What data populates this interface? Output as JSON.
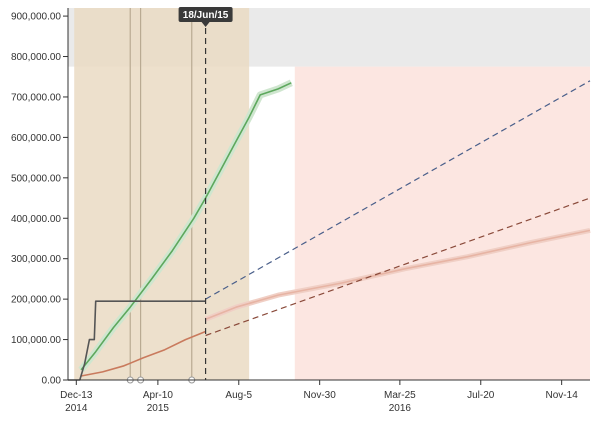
{
  "chart_data": {
    "type": "line",
    "y_ticks": [
      "0.00",
      "100,000.00",
      "200,000.00",
      "300,000.00",
      "400,000.00",
      "500,000.00",
      "600,000.00",
      "700,000.00",
      "800,000.00",
      "900,000.00"
    ],
    "y_tick_values": [
      0,
      100000,
      200000,
      300000,
      400000,
      500000,
      600000,
      700000,
      800000,
      900000
    ],
    "ylim": [
      0,
      920000
    ],
    "x_domain": [
      "2014-12-01",
      "2016-12-25"
    ],
    "x_ticks": [
      {
        "date": "2014-12-13",
        "label": "Dec-13",
        "year": "2014"
      },
      {
        "date": "2015-04-10",
        "label": "Apr-10",
        "year": "2015"
      },
      {
        "date": "2015-08-05",
        "label": "Aug-5",
        "year": ""
      },
      {
        "date": "2015-11-30",
        "label": "Nov-30",
        "year": ""
      },
      {
        "date": "2016-03-25",
        "label": "Mar-25",
        "year": "2016"
      },
      {
        "date": "2016-07-20",
        "label": "Jul-20",
        "year": ""
      },
      {
        "date": "2016-11-14",
        "label": "Nov-14",
        "year": ""
      }
    ],
    "grid": "off",
    "today_marker": {
      "date": "2015-06-18",
      "label": "18/Jun/15"
    },
    "event_lines": [
      "2015-03-01",
      "2015-03-16",
      "2015-05-29"
    ],
    "bands": [
      {
        "start": "2014-12-01",
        "end": "2016-12-25",
        "y_from": 775000,
        "y_to": 920000,
        "color": "#e6e6e6"
      },
      {
        "start": "2014-12-10",
        "end": "2015-08-20",
        "y_from": 0,
        "y_to": 920000,
        "color": "#eadbc3"
      },
      {
        "start": "2015-10-25",
        "end": "2016-12-25",
        "y_from": 0,
        "y_to": 775000,
        "color": "#fbe2dc"
      }
    ],
    "series": [
      {
        "color": "#5da85d",
        "points": [
          [
            "2014-12-20",
            25000
          ],
          [
            "2015-01-10",
            70000
          ],
          [
            "2015-02-05",
            130000
          ],
          [
            "2015-03-01",
            180000
          ],
          [
            "2015-04-01",
            250000
          ],
          [
            "2015-05-01",
            320000
          ],
          [
            "2015-06-01",
            400000
          ],
          [
            "2015-06-18",
            450000
          ],
          [
            "2015-07-10",
            520000
          ],
          [
            "2015-08-01",
            590000
          ],
          [
            "2015-08-20",
            650000
          ],
          [
            "2015-09-05",
            705000
          ],
          [
            "2015-10-01",
            720000
          ],
          [
            "2015-10-20",
            735000
          ]
        ]
      },
      {
        "color": "#c97a5d",
        "points": [
          [
            "2014-12-20",
            10000
          ],
          [
            "2015-01-20",
            20000
          ],
          [
            "2015-02-20",
            35000
          ],
          [
            "2015-03-20",
            55000
          ],
          [
            "2015-04-20",
            75000
          ],
          [
            "2015-05-20",
            100000
          ],
          [
            "2015-06-18",
            120000
          ]
        ]
      },
      {
        "color": "#555555",
        "points": [
          [
            "2014-12-01",
            0
          ],
          [
            "2014-12-18",
            0
          ],
          [
            "2014-12-25",
            40000
          ],
          [
            "2015-01-01",
            100000
          ],
          [
            "2015-01-08",
            100000
          ],
          [
            "2015-01-10",
            195000
          ],
          [
            "2015-06-18",
            195000
          ]
        ]
      },
      {
        "color": "#e7b4a4",
        "points": [
          [
            "2015-06-18",
            150000
          ],
          [
            "2015-08-01",
            180000
          ],
          [
            "2015-10-01",
            210000
          ],
          [
            "2016-01-01",
            240000
          ],
          [
            "2016-04-01",
            275000
          ],
          [
            "2016-07-01",
            305000
          ],
          [
            "2016-10-01",
            340000
          ],
          [
            "2016-12-25",
            370000
          ]
        ]
      },
      {
        "color": "#4a5f8a",
        "dashed": true,
        "points": [
          [
            "2015-06-18",
            200000
          ],
          [
            "2016-12-25",
            740000
          ]
        ]
      },
      {
        "color": "#8a4a3a",
        "dashed": true,
        "points": [
          [
            "2015-06-18",
            110000
          ],
          [
            "2016-12-25",
            450000
          ]
        ]
      }
    ]
  }
}
